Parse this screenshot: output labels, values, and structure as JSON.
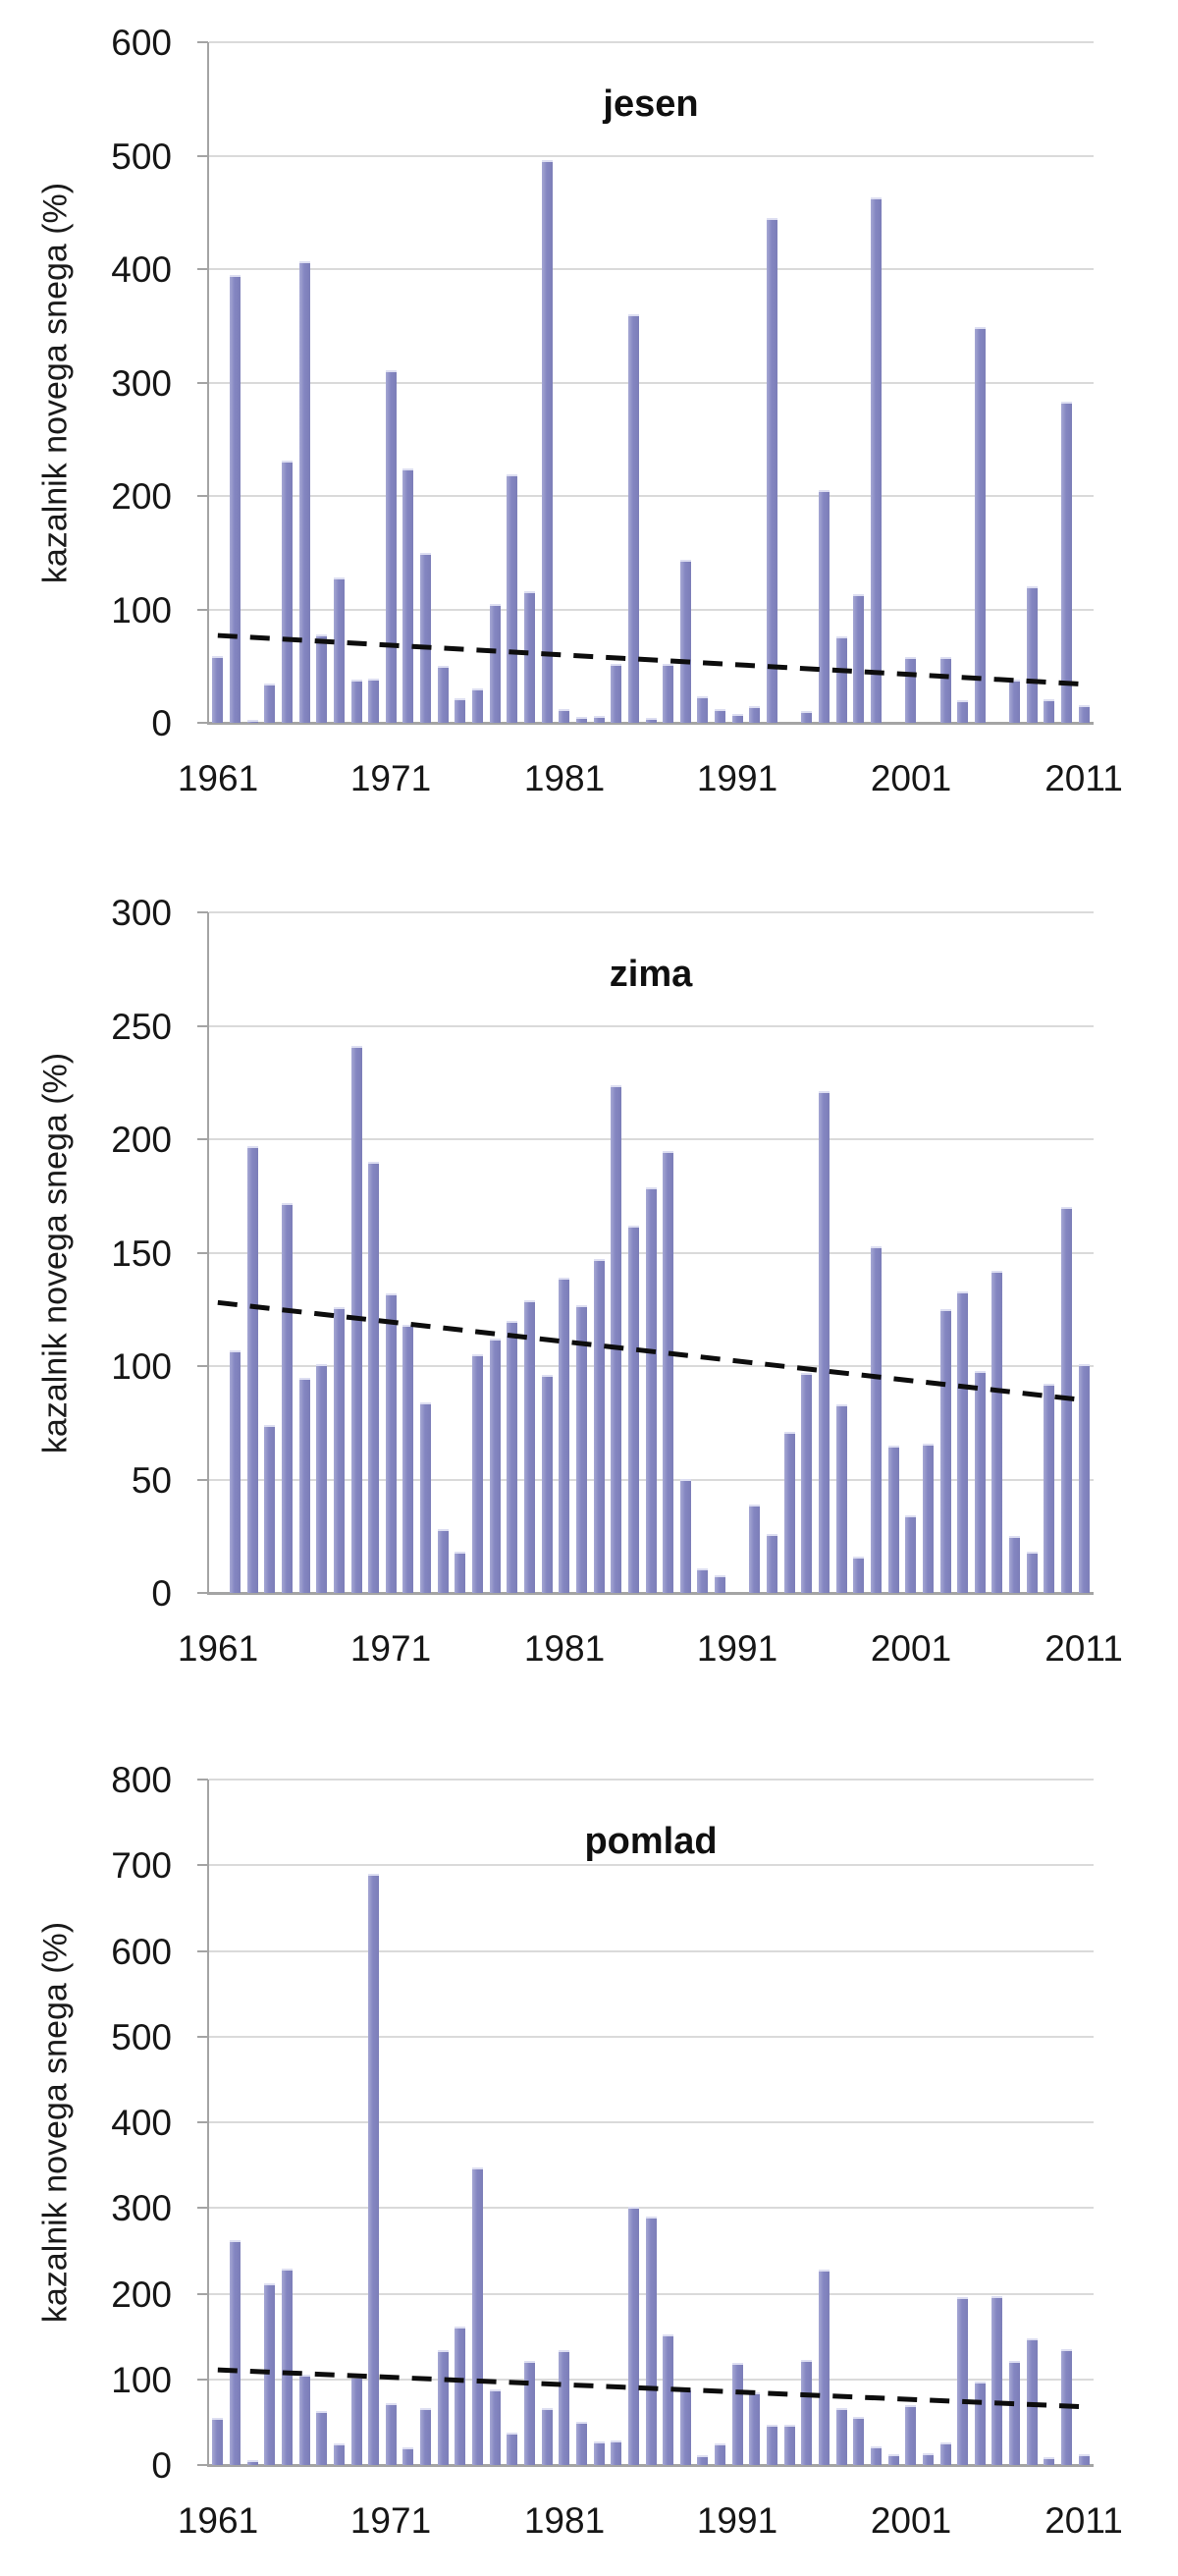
{
  "figure": {
    "description_axis_title": "kazalnik novega snega (%)",
    "colors": {
      "bar": "#8486c1",
      "bar_light_edge": "#a6a8d4",
      "gridline": "#dadada",
      "axis": "#a4a4a4",
      "text": "#141414",
      "trendline": "#0d0d0d",
      "background": "#ffffff"
    }
  },
  "chart_data": [
    {
      "type": "bar",
      "title": "jesen",
      "xlabel": "",
      "ylabel": "kazalnik novega snega (%)",
      "ylim": [
        0,
        600
      ],
      "ystep": 100,
      "y_ticks": [
        0,
        100,
        200,
        300,
        400,
        500,
        600
      ],
      "x_tick_labels": [
        "1961",
        "1971",
        "1981",
        "1991",
        "2001",
        "2011"
      ],
      "grid": true,
      "legend": false,
      "start_year": 1961,
      "end_year": 2011,
      "values": [
        59,
        395,
        3,
        35,
        231,
        407,
        78,
        128,
        38,
        39,
        311,
        224,
        150,
        50,
        22,
        30,
        105,
        219,
        116,
        496,
        12,
        5,
        6,
        52,
        360,
        4,
        52,
        144,
        23,
        12,
        8,
        15,
        445,
        0,
        10,
        205,
        76,
        113,
        463,
        0,
        58,
        0,
        58,
        20,
        349,
        0,
        38,
        120,
        21,
        283,
        16
      ],
      "trend": {
        "type": "dashed-linear",
        "start_value": 77,
        "end_value": 34
      }
    },
    {
      "type": "bar",
      "title": "zima",
      "xlabel": "",
      "ylabel": "kazalnik novega snega (%)",
      "ylim": [
        0,
        300
      ],
      "ystep": 50,
      "y_ticks": [
        0,
        50,
        100,
        150,
        200,
        250,
        300
      ],
      "x_tick_labels": [
        "1961",
        "1971",
        "1981",
        "1991",
        "2001",
        "2011"
      ],
      "grid": true,
      "legend": false,
      "start_year": 1961,
      "end_year": 2011,
      "values": [
        0,
        107,
        197,
        74,
        172,
        95,
        101,
        126,
        241,
        190,
        132,
        118,
        84,
        28,
        18,
        105,
        112,
        120,
        129,
        96,
        139,
        127,
        147,
        224,
        162,
        179,
        195,
        50,
        11,
        8,
        0,
        39,
        26,
        71,
        97,
        221,
        83,
        16,
        153,
        65,
        34,
        66,
        125,
        133,
        98,
        142,
        25,
        18,
        92,
        170,
        101
      ],
      "trend": {
        "type": "dashed-linear",
        "start_value": 128,
        "end_value": 85
      }
    },
    {
      "type": "bar",
      "title": "pomlad",
      "xlabel": "",
      "ylabel": "kazalnik novega snega (%)",
      "ylim": [
        0,
        800
      ],
      "ystep": 100,
      "y_ticks": [
        0,
        100,
        200,
        300,
        400,
        500,
        600,
        700,
        800
      ],
      "x_tick_labels": [
        "1961",
        "1971",
        "1981",
        "1991",
        "2001",
        "2011"
      ],
      "grid": true,
      "legend": false,
      "start_year": 1961,
      "end_year": 2011,
      "values": [
        55,
        263,
        6,
        212,
        229,
        105,
        63,
        25,
        103,
        690,
        72,
        21,
        67,
        134,
        162,
        347,
        88,
        38,
        122,
        67,
        134,
        50,
        27,
        29,
        301,
        290,
        153,
        89,
        11,
        25,
        119,
        85,
        47,
        47,
        123,
        228,
        66,
        56,
        22,
        13,
        70,
        14,
        26,
        196,
        97,
        197,
        121,
        148,
        9,
        135,
        13
      ],
      "trend": {
        "type": "dashed-linear",
        "start_value": 111,
        "end_value": 68
      }
    }
  ]
}
